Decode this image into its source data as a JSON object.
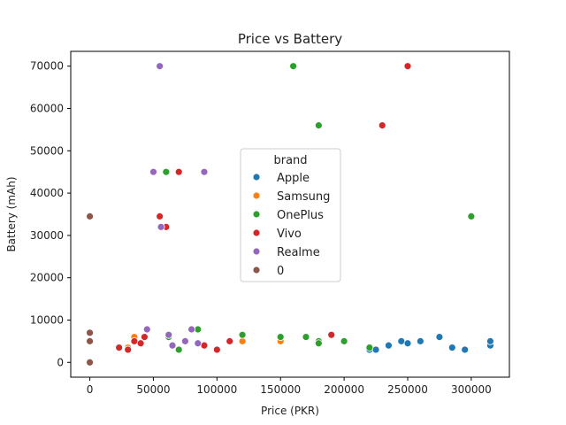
{
  "chart_data": {
    "type": "scatter",
    "title": "Price vs Battery",
    "xlabel": "Price (PKR)",
    "ylabel": "Battery (mAh)",
    "xlim": [
      -15000,
      330000
    ],
    "ylim": [
      -3500,
      73500
    ],
    "xticks": [
      0,
      50000,
      100000,
      150000,
      200000,
      250000,
      300000
    ],
    "xtick_labels": [
      "0",
      "50000",
      "100000",
      "150000",
      "200000",
      "250000",
      "300000"
    ],
    "yticks": [
      0,
      10000,
      20000,
      30000,
      40000,
      50000,
      60000,
      70000
    ],
    "ytick_labels": [
      "0",
      "10000",
      "20000",
      "30000",
      "40000",
      "50000",
      "60000",
      "70000"
    ],
    "grid": false,
    "legend": {
      "title": "brand",
      "placement": "center"
    },
    "series": [
      {
        "name": "Apple",
        "color": "#1f77b4",
        "points": [
          [
            220000,
            3000
          ],
          [
            225000,
            3000
          ],
          [
            235000,
            4000
          ],
          [
            245000,
            5000
          ],
          [
            250000,
            4500
          ],
          [
            260000,
            5000
          ],
          [
            275000,
            6000
          ],
          [
            285000,
            3500
          ],
          [
            295000,
            3000
          ],
          [
            315000,
            4000
          ],
          [
            315000,
            5000
          ]
        ]
      },
      {
        "name": "Samsung",
        "color": "#ff7f0e",
        "points": [
          [
            30000,
            3500
          ],
          [
            35000,
            6000
          ],
          [
            120000,
            5000
          ],
          [
            150000,
            5000
          ]
        ]
      },
      {
        "name": "OnePlus",
        "color": "#2ca02c",
        "points": [
          [
            160000,
            70000
          ],
          [
            180000,
            56000
          ],
          [
            60000,
            45000
          ],
          [
            300000,
            34500
          ],
          [
            57000,
            32000
          ],
          [
            62000,
            6000
          ],
          [
            70000,
            3000
          ],
          [
            85000,
            7800
          ],
          [
            120000,
            6500
          ],
          [
            150000,
            6000
          ],
          [
            170000,
            6000
          ],
          [
            180000,
            5000
          ],
          [
            180000,
            4500
          ],
          [
            200000,
            5000
          ],
          [
            220000,
            3500
          ]
        ]
      },
      {
        "name": "Vivo",
        "color": "#d62728",
        "points": [
          [
            250000,
            70000
          ],
          [
            230000,
            56000
          ],
          [
            70000,
            45000
          ],
          [
            55000,
            34500
          ],
          [
            60000,
            32000
          ],
          [
            23000,
            3500
          ],
          [
            30000,
            3000
          ],
          [
            35000,
            5000
          ],
          [
            40000,
            4500
          ],
          [
            43000,
            6000
          ],
          [
            90000,
            4000
          ],
          [
            100000,
            3000
          ],
          [
            110000,
            5000
          ],
          [
            190000,
            6500
          ]
        ]
      },
      {
        "name": "Realme",
        "color": "#9467bd",
        "points": [
          [
            55000,
            70000
          ],
          [
            50000,
            45000
          ],
          [
            90000,
            45000
          ],
          [
            56000,
            32000
          ],
          [
            45000,
            7800
          ],
          [
            62000,
            6500
          ],
          [
            65000,
            4000
          ],
          [
            75000,
            5000
          ],
          [
            80000,
            7800
          ],
          [
            85000,
            4500
          ]
        ]
      },
      {
        "name": "0",
        "color": "#8c564b",
        "points": [
          [
            0,
            34500
          ],
          [
            0,
            7000
          ],
          [
            0,
            5000
          ],
          [
            0,
            0
          ]
        ]
      }
    ]
  }
}
